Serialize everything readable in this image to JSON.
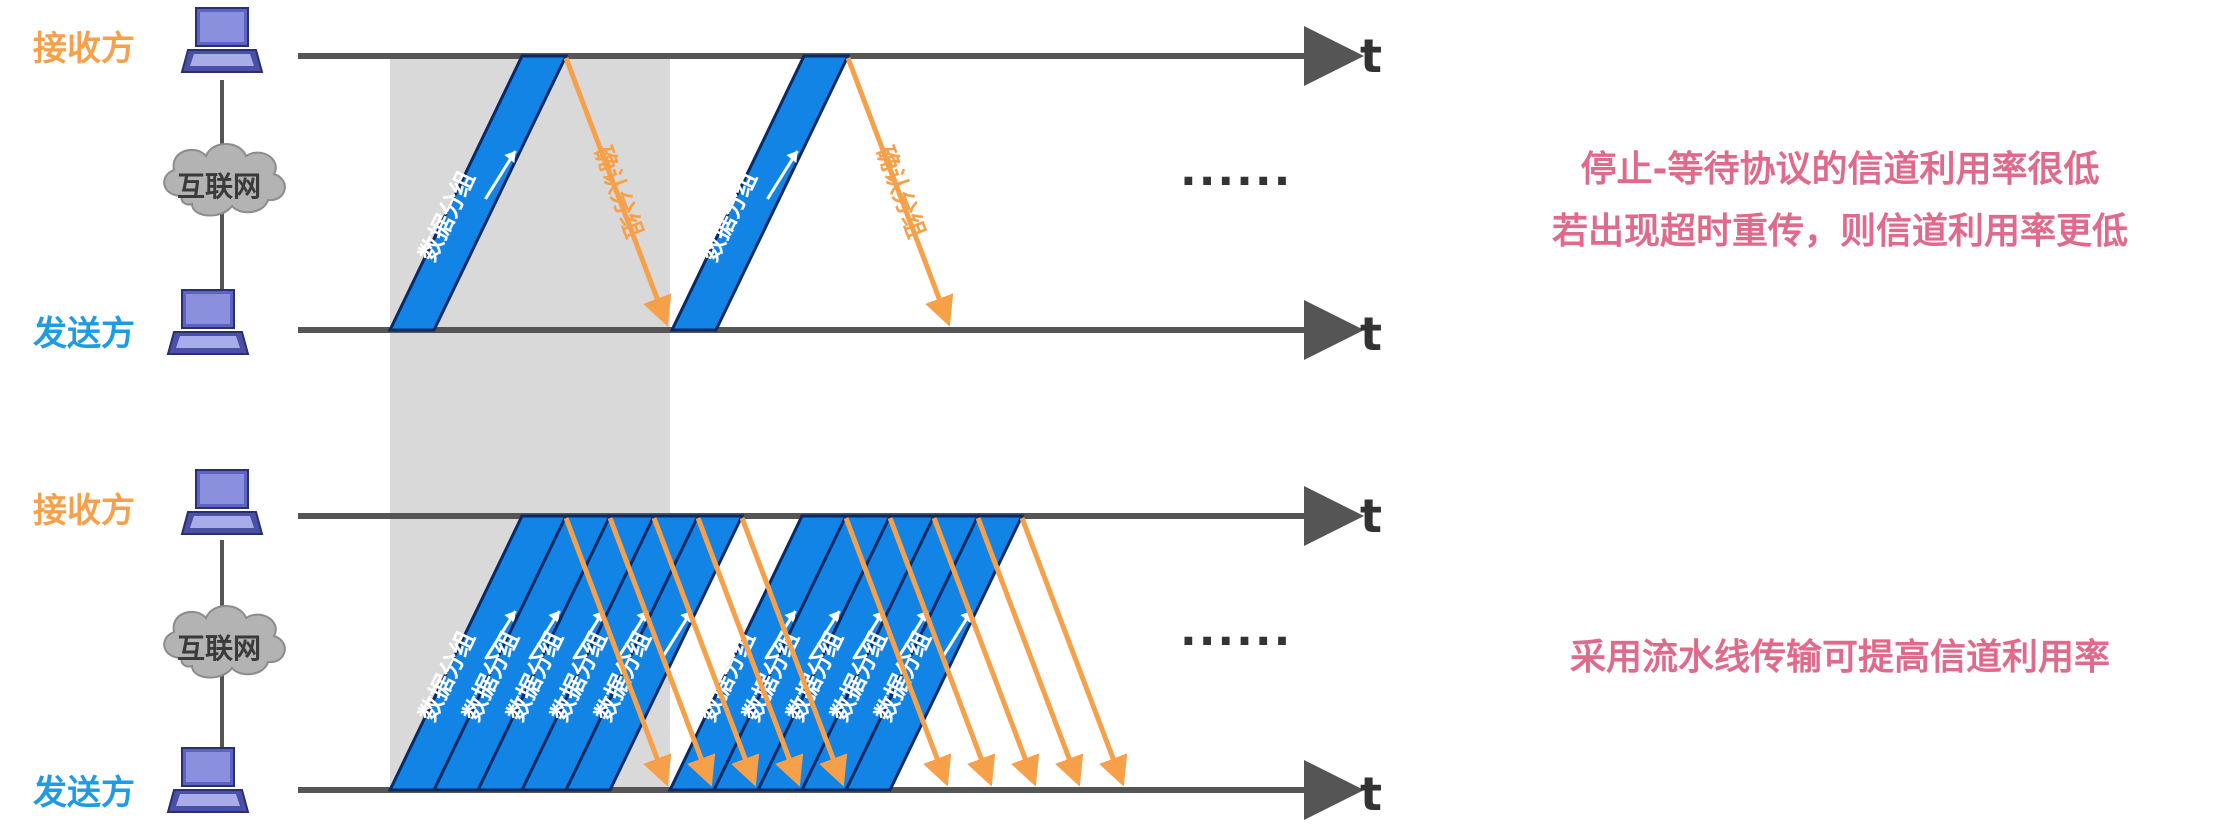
{
  "colors": {
    "receiver": "#f7a04a",
    "sender": "#1e9be4",
    "packet": "#1184e6",
    "ack": "#f7a04a",
    "axis": "#555555",
    "note": "#e06a8c",
    "shade": "#d9d9d9"
  },
  "icons": [
    "laptop-icon",
    "cloud-icon",
    "arrow-right-icon"
  ],
  "top_diagram": {
    "receiver_label": "接收方",
    "sender_label": "发送方",
    "network_label": "互联网",
    "time_label_receiver": "t",
    "time_label_sender": "t",
    "packet_label": "数据分组",
    "ack_label": "确认分组",
    "ellipsis": "······",
    "packet_count": 2,
    "ack_count": 2
  },
  "bottom_diagram": {
    "receiver_label": "接收方",
    "sender_label": "发送方",
    "network_label": "互联网",
    "time_label_receiver": "t",
    "time_label_sender": "t",
    "packet_label": "数据分组",
    "ellipsis": "······",
    "packet_count": 10,
    "ack_count": 10
  },
  "notes": {
    "line1": "停止-等待协议的信道利用率很低",
    "line2": "若出现超时重传，则信道利用率更低",
    "line3": "采用流水线传输可提高信道利用率"
  }
}
